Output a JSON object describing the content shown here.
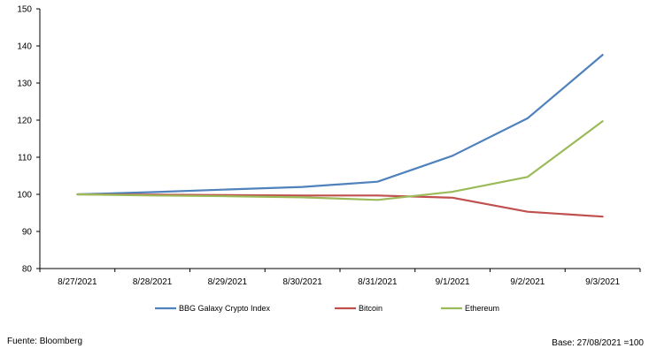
{
  "chart_data": {
    "type": "line",
    "title": "",
    "xlabel": "",
    "ylabel": "",
    "categories": [
      "8/27/2021",
      "8/28/2021",
      "8/29/2021",
      "8/30/2021",
      "8/31/2021",
      "9/1/2021",
      "9/2/2021",
      "9/3/2021"
    ],
    "ylim": [
      80,
      150
    ],
    "yticks": [
      80,
      90,
      100,
      110,
      120,
      130,
      140,
      150
    ],
    "grid": false,
    "legend_position": "bottom",
    "series": [
      {
        "name": "BBG Galaxy Crypto Index",
        "color": "#4f81bd",
        "values": [
          100,
          100.6,
          101.3,
          102.0,
          103.4,
          110.4,
          120.5,
          137.6
        ]
      },
      {
        "name": "Bitcoin",
        "color": "#c0504d",
        "values": [
          100,
          99.9,
          99.8,
          99.7,
          99.7,
          99.1,
          95.3,
          94.0
        ]
      },
      {
        "name": "Ethereum",
        "color": "#9bbb59",
        "values": [
          100,
          99.7,
          99.5,
          99.2,
          98.5,
          100.7,
          104.7,
          119.7
        ]
      }
    ]
  },
  "footer": {
    "source": "Fuente: Bloomberg",
    "base": "Base:  27/08/2021 =100"
  }
}
